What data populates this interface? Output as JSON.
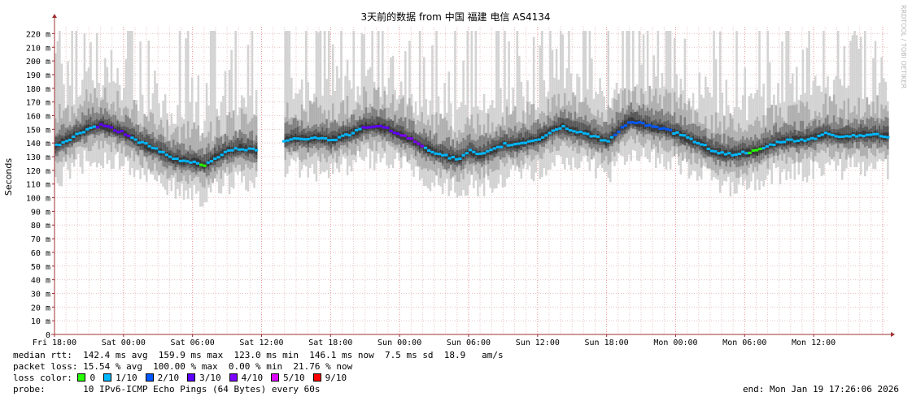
{
  "chart_data": {
    "type": "line",
    "title": "3天前的数据 from 中国 福建 电信 AS4134",
    "ylabel": "Seconds",
    "ylim": [
      0,
      225
    ],
    "yticks": [
      "0",
      "10 m",
      "20 m",
      "30 m",
      "40 m",
      "50 m",
      "60 m",
      "70 m",
      "80 m",
      "90 m",
      "100 m",
      "110 m",
      "120 m",
      "130 m",
      "140 m",
      "150 m",
      "160 m",
      "170 m",
      "180 m",
      "190 m",
      "200 m",
      "210 m",
      "220 m"
    ],
    "xlim": [
      0,
      72.5
    ],
    "xticks": [
      {
        "t": 0,
        "label": "Fri 18:00"
      },
      {
        "t": 6,
        "label": "Sat 00:00"
      },
      {
        "t": 12,
        "label": "Sat 06:00"
      },
      {
        "t": 18,
        "label": "Sat 12:00"
      },
      {
        "t": 24,
        "label": "Sat 18:00"
      },
      {
        "t": 30,
        "label": "Sun 00:00"
      },
      {
        "t": 36,
        "label": "Sun 06:00"
      },
      {
        "t": 42,
        "label": "Sun 12:00"
      },
      {
        "t": 48,
        "label": "Sun 18:00"
      },
      {
        "t": 54,
        "label": "Mon 00:00"
      },
      {
        "t": 60,
        "label": "Mon 06:00"
      },
      {
        "t": 66,
        "label": "Mon 12:00"
      }
    ],
    "gap": [
      17.5,
      19.8
    ],
    "median_ms": [
      [
        0,
        138
      ],
      [
        1,
        142
      ],
      [
        2,
        147
      ],
      [
        3,
        151
      ],
      [
        4,
        153
      ],
      [
        5,
        150
      ],
      [
        6,
        147
      ],
      [
        7,
        142
      ],
      [
        8,
        138
      ],
      [
        9,
        134
      ],
      [
        10,
        129
      ],
      [
        11,
        127
      ],
      [
        12,
        126
      ],
      [
        13,
        124
      ],
      [
        14,
        130
      ],
      [
        15,
        134
      ],
      [
        16,
        136
      ],
      [
        17,
        135
      ],
      [
        17.5,
        134
      ],
      [
        19.8,
        142
      ],
      [
        21,
        144
      ],
      [
        22,
        143
      ],
      [
        23,
        144
      ],
      [
        24,
        142
      ],
      [
        25,
        145
      ],
      [
        26,
        148
      ],
      [
        27,
        152
      ],
      [
        28,
        152
      ],
      [
        29,
        150
      ],
      [
        30,
        146
      ],
      [
        31,
        142
      ],
      [
        32,
        137
      ],
      [
        33,
        133
      ],
      [
        34,
        130
      ],
      [
        35,
        128
      ],
      [
        36,
        134
      ],
      [
        37,
        131
      ],
      [
        38,
        135
      ],
      [
        39,
        139
      ],
      [
        40,
        139
      ],
      [
        41,
        141
      ],
      [
        42,
        143
      ],
      [
        43,
        148
      ],
      [
        44,
        152
      ],
      [
        45,
        149
      ],
      [
        46,
        147
      ],
      [
        47,
        144
      ],
      [
        48,
        141
      ],
      [
        49,
        150
      ],
      [
        50,
        156
      ],
      [
        51,
        154
      ],
      [
        52,
        151
      ],
      [
        53,
        150
      ],
      [
        54,
        147
      ],
      [
        55,
        143
      ],
      [
        56,
        140
      ],
      [
        57,
        135
      ],
      [
        58,
        132
      ],
      [
        59,
        132
      ],
      [
        60,
        133
      ],
      [
        61,
        134
      ],
      [
        62,
        138
      ],
      [
        63,
        141
      ],
      [
        64,
        142
      ],
      [
        65,
        142
      ],
      [
        66,
        144
      ],
      [
        67,
        147
      ],
      [
        68,
        145
      ],
      [
        69,
        145
      ],
      [
        70,
        146
      ],
      [
        71,
        146
      ],
      [
        72,
        145
      ]
    ],
    "loss_color": [
      "0",
      "1/10",
      "2/10",
      "3/10",
      "4/10",
      "5/10",
      "9/10"
    ],
    "loss_segments": [
      {
        "from": 0,
        "to": 3.5,
        "loss": "1/10"
      },
      {
        "from": 3.5,
        "to": 6.5,
        "loss": "3/10"
      },
      {
        "from": 6.5,
        "to": 12.5,
        "loss": "1/10"
      },
      {
        "from": 12.5,
        "to": 13.2,
        "loss": "0"
      },
      {
        "from": 13.2,
        "to": 17.5,
        "loss": "1/10"
      },
      {
        "from": 19.8,
        "to": 26.5,
        "loss": "1/10"
      },
      {
        "from": 26.5,
        "to": 29.8,
        "loss": "3/10"
      },
      {
        "from": 29.8,
        "to": 32,
        "loss": "4/10"
      },
      {
        "from": 32,
        "to": 48.5,
        "loss": "1/10"
      },
      {
        "from": 48.5,
        "to": 53.5,
        "loss": "2/10"
      },
      {
        "from": 53.5,
        "to": 60.2,
        "loss": "1/10"
      },
      {
        "from": 60.2,
        "to": 61.2,
        "loss": "0"
      },
      {
        "from": 61.2,
        "to": 72.5,
        "loss": "1/10"
      }
    ],
    "watermark": "RRDTOOL / TOBI OETIKER"
  },
  "colors": {
    "background": "#ffffff",
    "grid_minor": "#e8c4c4",
    "grid_major": "#e89090",
    "axis": "#a03030",
    "smoke_light": "#d3d3d3",
    "smoke_mid": "#b0b0b0",
    "smoke_dark": "#808080",
    "smoke_darker": "#5a5a5a",
    "smoke_darkest": "#383838",
    "loss_0": "#26ff00",
    "loss_1": "#00b8ff",
    "loss_2": "#0059ff",
    "loss_3": "#5e00ff",
    "loss_4": "#7e00ff",
    "loss_5": "#dd00ff",
    "loss_9": "#ff0000"
  },
  "stats": {
    "median_rtt": "median rtt:  142.4 ms avg  159.9 ms max  123.0 ms min  146.1 ms now  7.5 ms sd  18.9   am/s",
    "packet_loss": "packet loss: 15.54 % avg  100.00 % max  0.00 % min  21.76 % now",
    "loss_label": "loss color: ",
    "probe": "probe:       10 IPv6-ICMP Echo Pings (64 Bytes) every 60s",
    "end": "end: Mon Jan 19 17:26:06 2026"
  }
}
